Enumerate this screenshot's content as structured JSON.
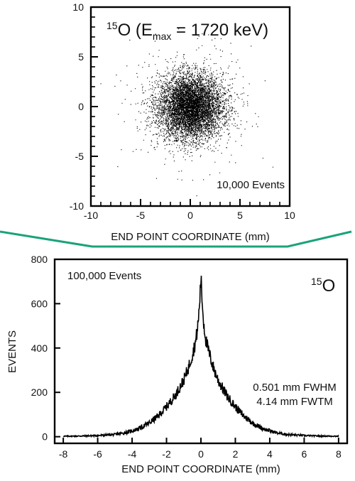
{
  "chart_data": [
    {
      "type": "scatter",
      "title_parts": {
        "mass": "15",
        "element": "O",
        "open": " (E",
        "sub": "max",
        "rest": " = 1720 keV)"
      },
      "annotation": "10,000 Events",
      "xlabel": "END POINT COORDINATE (mm)",
      "ylabel": "",
      "xlim": [
        -10,
        10
      ],
      "ylim": [
        -10,
        10
      ],
      "xticks": [
        -10,
        -5,
        0,
        5,
        10
      ],
      "yticks": [
        -10,
        -5,
        0,
        5,
        10
      ],
      "points": {
        "count_shown": 10000,
        "distribution": "2D Gaussian centered at (0,0), sigma ~1.6 mm, sparse tails to ~6 mm",
        "center": [
          0,
          0
        ],
        "sigma_mm": 1.6
      }
    },
    {
      "type": "line",
      "annotation": "100,000 Events",
      "label_parts": {
        "mass": "15",
        "element": "O"
      },
      "stats": [
        "0.501 mm FWHM",
        "4.14 mm FWTM"
      ],
      "xlabel": "END POINT COORDINATE (mm)",
      "ylabel": "EVENTS",
      "xlim": [
        -8.5,
        8.5
      ],
      "ylim": [
        -30,
        800
      ],
      "xticks": [
        -8,
        -6,
        -4,
        -2,
        0,
        2,
        4,
        6,
        8
      ],
      "yticks": [
        0,
        200,
        400,
        600,
        800
      ],
      "series": [
        {
          "x": [
            -8,
            -7,
            -6,
            -5,
            -4.5,
            -4,
            -3.5,
            -3,
            -2.5,
            -2,
            -1.5,
            -1,
            -0.75,
            -0.5,
            -0.3,
            -0.15,
            -0.05,
            0,
            0.05,
            0.15,
            0.3,
            0.5,
            0.75,
            1,
            1.5,
            2,
            2.5,
            3,
            3.5,
            4,
            4.5,
            5,
            6,
            7,
            8
          ],
          "y": [
            2,
            3,
            5,
            10,
            16,
            26,
            40,
            62,
            92,
            135,
            185,
            255,
            305,
            370,
            430,
            520,
            640,
            720,
            640,
            520,
            430,
            370,
            305,
            255,
            185,
            135,
            92,
            62,
            40,
            26,
            16,
            10,
            5,
            3,
            2
          ]
        }
      ]
    }
  ],
  "separator": {
    "color": "#1aa37a"
  }
}
